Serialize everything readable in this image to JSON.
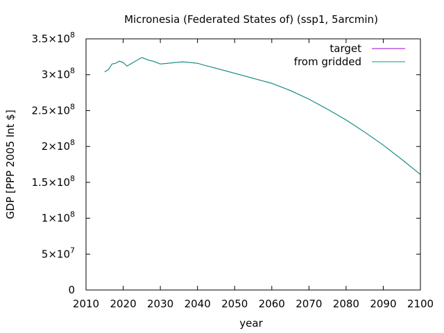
{
  "chart_data": {
    "type": "line",
    "title": "Micronesia (Federated States of) (ssp1, 5arcmin)",
    "xlabel": "year",
    "ylabel": "GDP [PPP 2005 Int $]",
    "xlim": [
      2010,
      2100
    ],
    "ylim": [
      0,
      350000000
    ],
    "grid": false,
    "legend_position": "top-right",
    "x_ticks": [
      {
        "value": 2010,
        "label": "2010"
      },
      {
        "value": 2020,
        "label": "2020"
      },
      {
        "value": 2030,
        "label": "2030"
      },
      {
        "value": 2040,
        "label": "2040"
      },
      {
        "value": 2050,
        "label": "2050"
      },
      {
        "value": 2060,
        "label": "2060"
      },
      {
        "value": 2070,
        "label": "2070"
      },
      {
        "value": 2080,
        "label": "2080"
      },
      {
        "value": 2090,
        "label": "2090"
      },
      {
        "value": 2100,
        "label": "2100"
      }
    ],
    "y_ticks": [
      {
        "value": 0,
        "mantissa": "0",
        "exponent": ""
      },
      {
        "value": 50000000,
        "mantissa": "5×10",
        "exponent": "7"
      },
      {
        "value": 100000000,
        "mantissa": "1×10",
        "exponent": "8"
      },
      {
        "value": 150000000,
        "mantissa": "1.5×10",
        "exponent": "8"
      },
      {
        "value": 200000000,
        "mantissa": "2×10",
        "exponent": "8"
      },
      {
        "value": 250000000,
        "mantissa": "2.5×10",
        "exponent": "8"
      },
      {
        "value": 300000000,
        "mantissa": "3×10",
        "exponent": "8"
      },
      {
        "value": 350000000,
        "mantissa": "3.5×10",
        "exponent": "8"
      }
    ],
    "x": [
      2015,
      2016,
      2017,
      2018,
      2019,
      2020,
      2021,
      2022,
      2023,
      2024,
      2025,
      2026,
      2027,
      2028,
      2029,
      2030,
      2032,
      2034,
      2036,
      2038,
      2040,
      2042,
      2045,
      2050,
      2055,
      2060,
      2065,
      2070,
      2075,
      2080,
      2085,
      2090,
      2095,
      2100
    ],
    "series": [
      {
        "name": "target",
        "color": "#9400d3",
        "values": [
          304000000,
          307000000,
          315000000,
          316000000,
          319000000,
          317000000,
          312000000,
          315000000,
          318000000,
          321000000,
          324000000,
          322000000,
          320000000,
          319000000,
          317000000,
          315000000,
          316000000,
          317000000,
          318000000,
          317000000,
          316000000,
          313000000,
          309000000,
          302000000,
          295000000,
          288000000,
          278000000,
          266000000,
          252000000,
          237000000,
          220000000,
          202000000,
          182000000,
          161000000
        ]
      },
      {
        "name": "from gridded",
        "color": "#009e73",
        "values": [
          304000000,
          307000000,
          315000000,
          316000000,
          319000000,
          317000000,
          312000000,
          315000000,
          318000000,
          321000000,
          324000000,
          322000000,
          320000000,
          319000000,
          317000000,
          315000000,
          316000000,
          317000000,
          318000000,
          317000000,
          316000000,
          313000000,
          309000000,
          302000000,
          295000000,
          288000000,
          278000000,
          266000000,
          252000000,
          237000000,
          220000000,
          202000000,
          182000000,
          161000000
        ]
      }
    ]
  }
}
